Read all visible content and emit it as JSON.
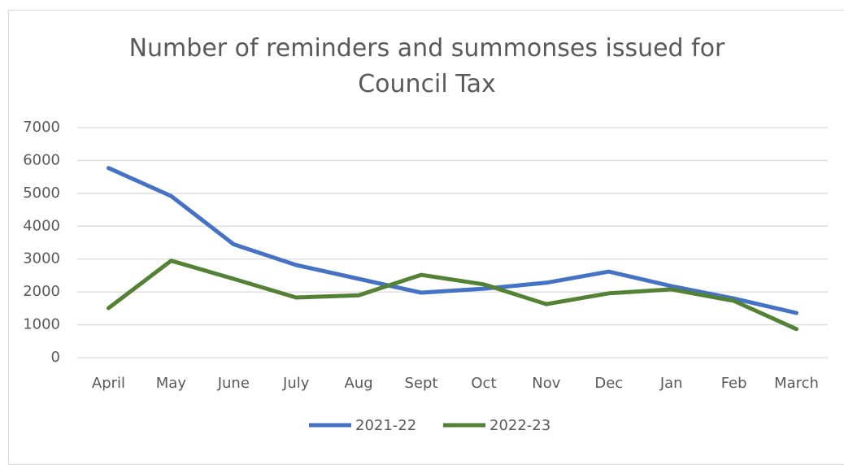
{
  "chart_data": {
    "type": "line",
    "title": "Number of reminders and summonses issued for Council Tax",
    "categories": [
      "April",
      "May",
      "June",
      "July",
      "Aug",
      "Sept",
      "Oct",
      "Nov",
      "Dec",
      "Jan",
      "Feb",
      "March"
    ],
    "series": [
      {
        "name": "2021-22",
        "color": "#4472c4",
        "values": [
          5770,
          4920,
          3450,
          2820,
          2400,
          1980,
          2100,
          2280,
          2620,
          2180,
          1800,
          1360
        ]
      },
      {
        "name": "2022-23",
        "color": "#548235",
        "values": [
          1510,
          2950,
          2400,
          1830,
          1900,
          2520,
          2230,
          1630,
          1960,
          2080,
          1730,
          870
        ]
      }
    ],
    "ylim": [
      0,
      7000
    ],
    "yticks": [
      0,
      1000,
      2000,
      3000,
      4000,
      5000,
      6000,
      7000
    ],
    "grid": true,
    "legend": "bottom"
  }
}
